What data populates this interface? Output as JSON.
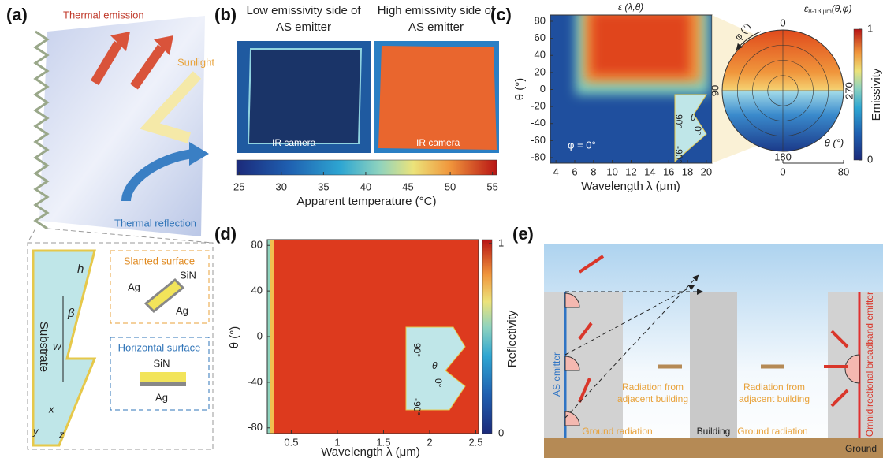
{
  "panel_a": {
    "label": "(a)",
    "thermal_emission": "Thermal emission",
    "sunlight": "Sunlight",
    "thermal_reflection": "Thermal reflection",
    "h": "h",
    "beta": "β",
    "w": "w",
    "substrate": "Substrate",
    "slanted_surface": "Slanted surface",
    "horizontal_surface": "Horizontal surface",
    "slanted_materials": [
      "SiN",
      "Ag",
      "Ag"
    ],
    "horizontal_materials": [
      "SiN",
      "Ag"
    ],
    "axes": [
      "x",
      "y",
      "z"
    ]
  },
  "panel_b": {
    "label": "(b)",
    "left_title": [
      "Low emissivity side of",
      "AS emitter"
    ],
    "right_title": [
      "High emissivity side of",
      "AS emitter"
    ],
    "camera_labels": [
      "IR camera",
      "IR camera"
    ],
    "colorbar": {
      "lim": [
        24.7,
        55.5
      ],
      "ticks": [
        25,
        30,
        35,
        40,
        45,
        50,
        55
      ],
      "label": "Apparent temperature (°C)"
    }
  },
  "panel_c": {
    "label": "(c)",
    "title": "ε (λ,θ)",
    "xlim": [
      3.4,
      20.6
    ],
    "xticks": [
      4,
      6,
      8,
      10,
      12,
      14,
      16,
      18,
      20
    ],
    "ylim": [
      -86.5,
      87.4
    ],
    "yticks": [
      80,
      60,
      40,
      20,
      0,
      -20,
      -40,
      -60,
      -80
    ],
    "xlabel": "Wavelength λ (μm)",
    "ylabel": "θ (°)",
    "phi_note": "φ = 0°",
    "inset_labels": [
      "90°",
      "θ",
      "0°",
      "-90°"
    ],
    "polar": {
      "symbol": "ε",
      "subscript": "8-13 μm",
      "args": "(θ,φ)",
      "angle_labels": [
        0,
        90,
        270,
        180
      ],
      "phi_label": "φ (°)",
      "theta_label": "θ (°)",
      "theta_lim": [
        0,
        80
      ],
      "theta_ticks": [
        0,
        80
      ]
    },
    "colorbar": {
      "lim": [
        0,
        1
      ],
      "ticks": [
        1,
        0
      ],
      "label": "Emissivity"
    }
  },
  "panel_d": {
    "label": "(d)",
    "xlim": [
      0.24,
      2.53
    ],
    "xticks": [
      0.5,
      1,
      1.5,
      2,
      2.5
    ],
    "ylim": [
      -85,
      85
    ],
    "yticks": [
      80,
      40,
      0,
      -40,
      -80
    ],
    "xlabel": "Wavelength λ (μm)",
    "ylabel": "θ (°)",
    "inset_labels": [
      "90°",
      "θ",
      "0°",
      "-90°"
    ],
    "colorbar": {
      "lim": [
        0,
        1.02
      ],
      "ticks": [
        1,
        0
      ],
      "label": "Reflectivity"
    }
  },
  "panel_e": {
    "label": "(e)",
    "as_emitter": "AS emitter",
    "building": "Building",
    "radiation_labels": [
      [
        "Radiation from",
        "adjacent building"
      ],
      [
        "Radiation from",
        "adjacent building"
      ]
    ],
    "ground_radiation": [
      "Ground radiation",
      "Ground radiation"
    ],
    "ground": "Ground",
    "omni_emitter": "Omnidirectional broadband emitter"
  }
}
